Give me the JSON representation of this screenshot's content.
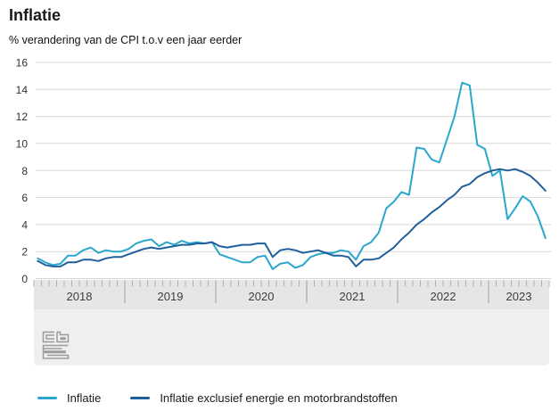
{
  "header": {
    "title": "Inflatie",
    "subtitle": "% verandering van de CPI t.o.v een jaar eerder"
  },
  "branding": {
    "logo": "cbs-logo"
  },
  "chart_data": {
    "type": "line",
    "title": "Inflatie",
    "subtitle": "% verandering van de CPI t.o.v een jaar eerder",
    "x_unit": "month",
    "x_start": "2018-01",
    "x_end": "2023-08",
    "year_labels": [
      "2018",
      "2019",
      "2020",
      "2021",
      "2022",
      "2023"
    ],
    "ylim": [
      0,
      16
    ],
    "yticks": [
      0,
      2,
      4,
      6,
      8,
      10,
      12,
      14,
      16
    ],
    "grid": "horizontal",
    "legend_position": "bottom",
    "series": [
      {
        "name": "Inflatie",
        "color": "#2AA7CC",
        "values": [
          1.5,
          1.2,
          1.0,
          1.1,
          1.7,
          1.7,
          2.1,
          2.3,
          1.9,
          2.1,
          2.0,
          2.0,
          2.2,
          2.6,
          2.8,
          2.9,
          2.4,
          2.7,
          2.5,
          2.8,
          2.6,
          2.7,
          2.6,
          2.7,
          1.8,
          1.6,
          1.4,
          1.2,
          1.2,
          1.6,
          1.7,
          0.7,
          1.1,
          1.2,
          0.8,
          1.0,
          1.6,
          1.8,
          1.9,
          1.9,
          2.1,
          2.0,
          1.4,
          2.4,
          2.7,
          3.4,
          5.2,
          5.7,
          6.4,
          6.2,
          9.7,
          9.6,
          8.8,
          8.6,
          10.3,
          12.0,
          14.5,
          14.3,
          9.9,
          9.6,
          7.6,
          8.0,
          4.4,
          5.2,
          6.1,
          5.7,
          4.6,
          3.0
        ]
      },
      {
        "name": "Inflatie exclusief energie en motorbrandstoffen",
        "color": "#1F5F9B",
        "values": [
          1.3,
          1.0,
          0.9,
          0.9,
          1.2,
          1.2,
          1.4,
          1.4,
          1.3,
          1.5,
          1.6,
          1.6,
          1.8,
          2.0,
          2.2,
          2.3,
          2.2,
          2.3,
          2.4,
          2.5,
          2.5,
          2.6,
          2.6,
          2.7,
          2.4,
          2.3,
          2.4,
          2.5,
          2.5,
          2.6,
          2.6,
          1.6,
          2.1,
          2.2,
          2.1,
          1.9,
          2.0,
          2.1,
          1.9,
          1.7,
          1.7,
          1.6,
          0.9,
          1.4,
          1.4,
          1.5,
          1.9,
          2.3,
          2.9,
          3.4,
          4.0,
          4.4,
          4.9,
          5.3,
          5.8,
          6.2,
          6.8,
          7.0,
          7.5,
          7.8,
          8.0,
          8.1,
          8.0,
          8.1,
          7.9,
          7.6,
          7.1,
          6.5
        ]
      }
    ]
  }
}
